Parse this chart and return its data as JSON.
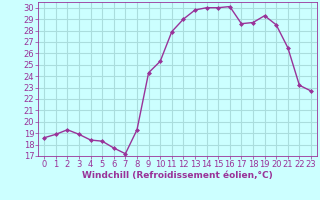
{
  "x": [
    0,
    1,
    2,
    3,
    4,
    5,
    6,
    7,
    8,
    9,
    10,
    11,
    12,
    13,
    14,
    15,
    16,
    17,
    18,
    19,
    20,
    21,
    22,
    23
  ],
  "y": [
    18.6,
    18.9,
    19.3,
    18.9,
    18.4,
    18.3,
    17.7,
    17.2,
    19.3,
    24.3,
    25.3,
    27.9,
    29.0,
    29.8,
    30.0,
    30.0,
    30.1,
    28.6,
    28.7,
    29.3,
    28.5,
    26.5,
    23.2,
    22.7
  ],
  "line_color": "#993399",
  "marker": "D",
  "marker_size": 2.0,
  "linewidth": 1.0,
  "xlabel": "Windchill (Refroidissement éolien,°C)",
  "ylabel": "",
  "ylim": [
    17,
    30.5
  ],
  "xlim": [
    -0.5,
    23.5
  ],
  "yticks": [
    17,
    18,
    19,
    20,
    21,
    22,
    23,
    24,
    25,
    26,
    27,
    28,
    29,
    30
  ],
  "xticks": [
    0,
    1,
    2,
    3,
    4,
    5,
    6,
    7,
    8,
    9,
    10,
    11,
    12,
    13,
    14,
    15,
    16,
    17,
    18,
    19,
    20,
    21,
    22,
    23
  ],
  "background_color": "#ccffff",
  "grid_color": "#aadddd",
  "xlabel_fontsize": 6.5,
  "tick_fontsize": 6.0
}
